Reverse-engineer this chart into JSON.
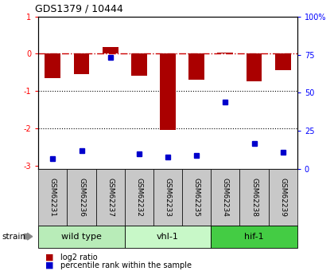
{
  "title": "GDS1379 / 10444",
  "samples": [
    "GSM62231",
    "GSM62236",
    "GSM62237",
    "GSM62232",
    "GSM62233",
    "GSM62235",
    "GSM62234",
    "GSM62238",
    "GSM62239"
  ],
  "log2_ratio": [
    -0.65,
    -0.55,
    0.18,
    -0.6,
    -2.05,
    -0.7,
    0.02,
    -0.75,
    -0.45
  ],
  "percentile_rank": [
    7,
    12,
    73,
    10,
    8,
    9,
    44,
    17,
    11
  ],
  "groups": [
    {
      "label": "wild type",
      "start": 0,
      "end": 3,
      "color": "#b8ecb8"
    },
    {
      "label": "vhl-1",
      "start": 3,
      "end": 6,
      "color": "#c8f8c8"
    },
    {
      "label": "hif-1",
      "start": 6,
      "end": 9,
      "color": "#44cc44"
    }
  ],
  "ylim_left": [
    -3.1,
    1.0
  ],
  "ylim_right": [
    0,
    100
  ],
  "bar_color": "#aa0000",
  "dot_color": "#0000cc",
  "hline_color": "#cc0000",
  "dotted_lines": [
    -1,
    -2
  ],
  "bg_color": "#ffffff",
  "sample_box_color": "#c8c8c8",
  "legend_red_label": "log2 ratio",
  "legend_blue_label": "percentile rank within the sample",
  "strain_label": "strain",
  "left_yticks": [
    1,
    0,
    -1,
    -2,
    -3
  ],
  "right_yticks": [
    0,
    25,
    50,
    75,
    100
  ],
  "right_yticklabels": [
    "0",
    "25",
    "50",
    "75",
    "100%"
  ]
}
